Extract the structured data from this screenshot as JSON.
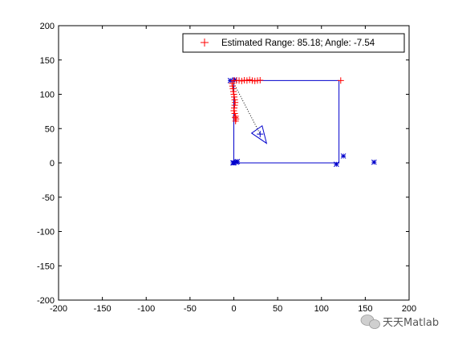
{
  "chart_data": {
    "type": "scatter",
    "xlim": [
      -200,
      200
    ],
    "ylim": [
      -200,
      200
    ],
    "xticks": [
      -200,
      -150,
      -100,
      -50,
      0,
      50,
      100,
      150,
      200
    ],
    "yticks": [
      -200,
      -150,
      -100,
      -50,
      0,
      50,
      100,
      150,
      200
    ],
    "grid": false,
    "legend": {
      "placement": "top-right",
      "label": "Estimated Range: 85.18; Angle: -7.54"
    },
    "colors": {
      "estimate": "#ff0000",
      "landmark": "#0000cc",
      "path": "#0000cc",
      "axis": "#000000"
    },
    "path": {
      "x": [
        0,
        120,
        120,
        0,
        0
      ],
      "y": [
        0,
        0,
        120,
        120,
        0
      ]
    },
    "estimated_points": {
      "name": "Estimated Range: 85.18; Angle: -7.54",
      "x": [
        0,
        3,
        6,
        9,
        12,
        15,
        18,
        21,
        24,
        27,
        30,
        122,
        -2,
        -1.5,
        -1,
        -0.5,
        0,
        0.5,
        1,
        1.5,
        1,
        0.5,
        0,
        1,
        2,
        2.5,
        2,
        1.5
      ],
      "y": [
        120,
        120,
        120,
        119.5,
        120.5,
        120,
        121,
        120,
        119.5,
        120,
        120.5,
        120,
        116,
        112,
        108,
        104,
        100,
        96,
        92,
        88,
        84,
        80,
        76,
        72,
        68,
        64,
        61,
        66
      ]
    },
    "landmark_points": {
      "x": [
        0,
        3,
        4,
        -1,
        117,
        125,
        160,
        -4,
        1
      ],
      "y": [
        0,
        1,
        2,
        0,
        -2,
        10,
        1,
        120,
        121
      ]
    },
    "robot": {
      "x": 30,
      "y": 42,
      "heading_deg": -55,
      "sight_line": {
        "x": [
          0,
          30
        ],
        "y": [
          116,
          42
        ]
      }
    }
  },
  "watermark": {
    "text": "天天Matlab",
    "icon": "wechat-icon"
  }
}
